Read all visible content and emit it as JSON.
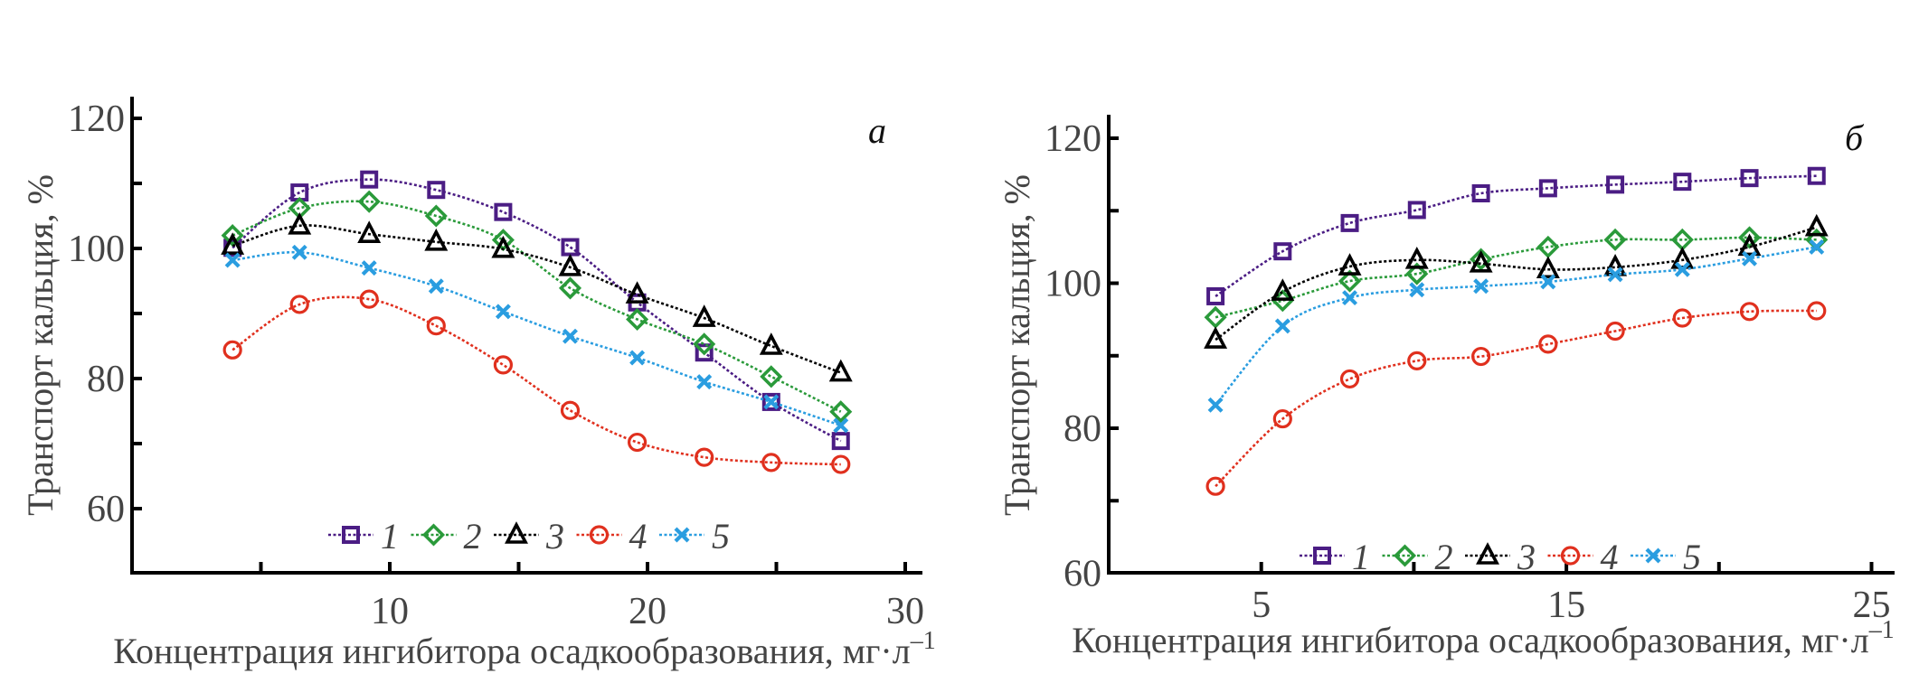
{
  "chart_data": [
    {
      "type": "line",
      "panel_label": "а",
      "title": "",
      "xlabel": "Концентрация ингибитора осадкообразования, мг·л",
      "xlabel_superscript": "–1",
      "ylabel": "Транспорт кальция, %",
      "xlim": [
        0,
        30.7
      ],
      "ylim": [
        50,
        123
      ],
      "xticks_major": [
        10,
        20,
        30
      ],
      "xticks_minor": [
        5,
        15,
        25
      ],
      "xtick_labels": [
        "10",
        "20",
        "30"
      ],
      "yticks_major": [
        60,
        80,
        100,
        120
      ],
      "yticks_minor": [
        70,
        90,
        110
      ],
      "ytick_labels": [
        "60",
        "80",
        "100",
        "120"
      ],
      "grid": false,
      "legend_position": "bottom-center",
      "x": [
        3.9,
        6.5,
        9.2,
        11.8,
        14.4,
        17.0,
        19.6,
        22.2,
        24.8,
        27.5
      ],
      "series": [
        {
          "name": "1",
          "marker": "square",
          "color": "#4b1d84",
          "values": [
            100.1,
            108.6,
            110.6,
            109.0,
            105.6,
            100.2,
            91.7,
            84.0,
            76.4,
            70.4
          ]
        },
        {
          "name": "2",
          "marker": "diamond",
          "color": "#2a9a3a",
          "values": [
            102.0,
            106.2,
            107.2,
            105.0,
            101.3,
            93.9,
            89.1,
            85.3,
            80.3,
            74.9
          ]
        },
        {
          "name": "3",
          "marker": "triangle",
          "color": "#000000",
          "values": [
            100.4,
            103.5,
            102.2,
            101.0,
            99.9,
            97.1,
            92.9,
            89.3,
            85.0,
            80.9
          ]
        },
        {
          "name": "4",
          "marker": "circle",
          "color": "#e0301e",
          "values": [
            84.4,
            91.4,
            92.2,
            88.1,
            82.1,
            75.1,
            70.2,
            67.9,
            67.1,
            66.8
          ]
        },
        {
          "name": "5",
          "marker": "cross",
          "color": "#2a9de0",
          "values": [
            98.2,
            99.4,
            97.0,
            94.2,
            90.3,
            86.5,
            83.2,
            79.5,
            76.4,
            72.8
          ]
        }
      ]
    },
    {
      "type": "line",
      "panel_label": "б",
      "title": "",
      "xlabel": "Концентрация ингибитора осадкообразования, мг·л",
      "xlabel_superscript": "–1",
      "ylabel": "Транспорт кальция, %",
      "xlim": [
        0,
        25.8
      ],
      "ylim": [
        60,
        123
      ],
      "xticks_major": [
        5,
        15,
        25
      ],
      "xticks_minor": [
        10,
        20
      ],
      "xtick_labels": [
        "5",
        "15",
        "25"
      ],
      "yticks_major": [
        60,
        80,
        100,
        120
      ],
      "yticks_minor": [
        70,
        90,
        110
      ],
      "ytick_labels": [
        "60",
        "80",
        "100",
        "120"
      ],
      "grid": false,
      "legend_position": "bottom-center",
      "x": [
        3.5,
        5.7,
        7.9,
        10.1,
        12.2,
        14.4,
        16.6,
        18.8,
        21.0,
        23.2
      ],
      "series": [
        {
          "name": "1",
          "marker": "square",
          "color": "#4b1d84",
          "values": [
            98.2,
            104.4,
            108.3,
            110.1,
            112.4,
            113.1,
            113.6,
            114.0,
            114.5,
            114.8
          ]
        },
        {
          "name": "2",
          "marker": "diamond",
          "color": "#2a9a3a",
          "values": [
            95.3,
            97.6,
            100.3,
            101.3,
            103.3,
            105.0,
            106.0,
            106.0,
            106.3,
            106.0
          ]
        },
        {
          "name": "3",
          "marker": "triangle",
          "color": "#000000",
          "values": [
            92.2,
            98.8,
            102.3,
            103.2,
            102.7,
            101.9,
            102.2,
            103.2,
            105.0,
            107.7
          ]
        },
        {
          "name": "4",
          "marker": "circle",
          "color": "#e0301e",
          "values": [
            72.0,
            81.3,
            86.8,
            89.3,
            89.9,
            91.6,
            93.4,
            95.2,
            96.1,
            96.2
          ]
        },
        {
          "name": "5",
          "marker": "cross",
          "color": "#2a9de0",
          "values": [
            83.2,
            94.1,
            98.0,
            99.1,
            99.6,
            100.2,
            101.2,
            101.9,
            103.4,
            105.0
          ]
        }
      ]
    }
  ]
}
